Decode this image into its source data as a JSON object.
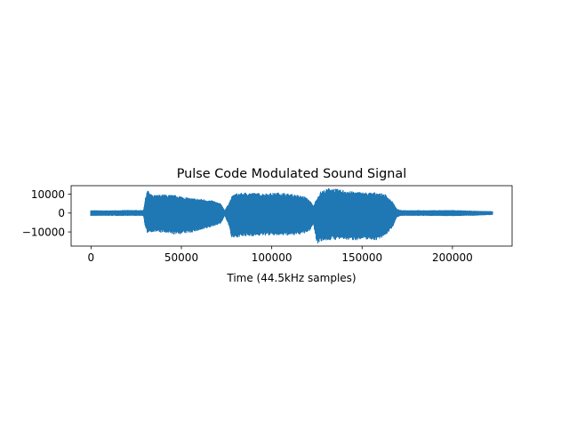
{
  "chart_data": {
    "type": "line",
    "title": "Pulse Code Modulated Sound Signal",
    "xlabel": "Time (44.5kHz samples)",
    "ylabel": "",
    "xlim": [
      -11000,
      233000
    ],
    "ylim": [
      -17500,
      14500
    ],
    "grid": false,
    "legend": "none",
    "line_color": "#1f77b4",
    "x_ticks": [
      {
        "value": 0,
        "label": "0"
      },
      {
        "value": 50000,
        "label": "50000"
      },
      {
        "value": 100000,
        "label": "100000"
      },
      {
        "value": 150000,
        "label": "150000"
      },
      {
        "value": 200000,
        "label": "200000"
      }
    ],
    "y_ticks": [
      {
        "value": 10000,
        "label": "10000"
      },
      {
        "value": 0,
        "label": "0"
      },
      {
        "value": -10000,
        "label": "−10000"
      }
    ],
    "series": [
      {
        "x_range": [
          0,
          222000
        ],
        "envelope": {
          "x": [
            0,
            8000,
            20000,
            29000,
            30000,
            31000,
            34000,
            40000,
            47000,
            55000,
            62000,
            68000,
            72000,
            74000,
            76000,
            78000,
            80000,
            86000,
            95000,
            105000,
            112000,
            118000,
            121000,
            123000,
            125000,
            127000,
            132000,
            138000,
            145000,
            152000,
            158000,
            163000,
            167000,
            169000,
            171000,
            185000,
            200000,
            212000,
            222000
          ],
          "max": [
            1500,
            1400,
            1600,
            1600,
            7500,
            12500,
            9500,
            10000,
            9500,
            8000,
            7500,
            6500,
            5000,
            1500,
            5000,
            9000,
            10500,
            11000,
            10500,
            11000,
            10000,
            9000,
            7000,
            4000,
            8000,
            11500,
            13500,
            12500,
            11500,
            11000,
            11000,
            10000,
            6000,
            2500,
            1600,
            1500,
            1600,
            1200,
            1000
          ],
          "min": [
            -1500,
            -1500,
            -1500,
            -1500,
            -8000,
            -10500,
            -10000,
            -10500,
            -11500,
            -10500,
            -9000,
            -7000,
            -5500,
            -1500,
            -6000,
            -14000,
            -13000,
            -12500,
            -12000,
            -12000,
            -12000,
            -11000,
            -9500,
            -6000,
            -16500,
            -15000,
            -14500,
            -14000,
            -14500,
            -14000,
            -14500,
            -12000,
            -7500,
            -2500,
            -1500,
            -1500,
            -1600,
            -1400,
            -1000
          ]
        }
      }
    ]
  }
}
